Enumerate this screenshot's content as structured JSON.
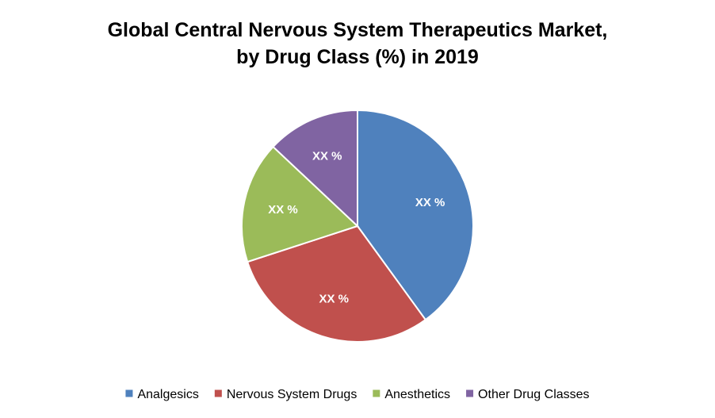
{
  "chart_data": {
    "type": "pie",
    "title": "Global Central Nervous System Therapeutics Market, by Drug Class (%) in 2019",
    "title_lines": [
      "Global Central Nervous System Therapeutics Market,",
      "by Drug Class (%) in 2019"
    ],
    "legend_position": "bottom",
    "slices": [
      {
        "name": "Analgesics",
        "value": 40,
        "label": "XX %",
        "color": "#4F81BD"
      },
      {
        "name": "Nervous System Drugs",
        "value": 30,
        "label": "XX %",
        "color": "#C0504D"
      },
      {
        "name": "Anesthetics",
        "value": 17,
        "label": "XX %",
        "color": "#9BBB59"
      },
      {
        "name": "Other Drug Classes",
        "value": 13,
        "label": "XX %",
        "color": "#8064A2"
      }
    ]
  }
}
